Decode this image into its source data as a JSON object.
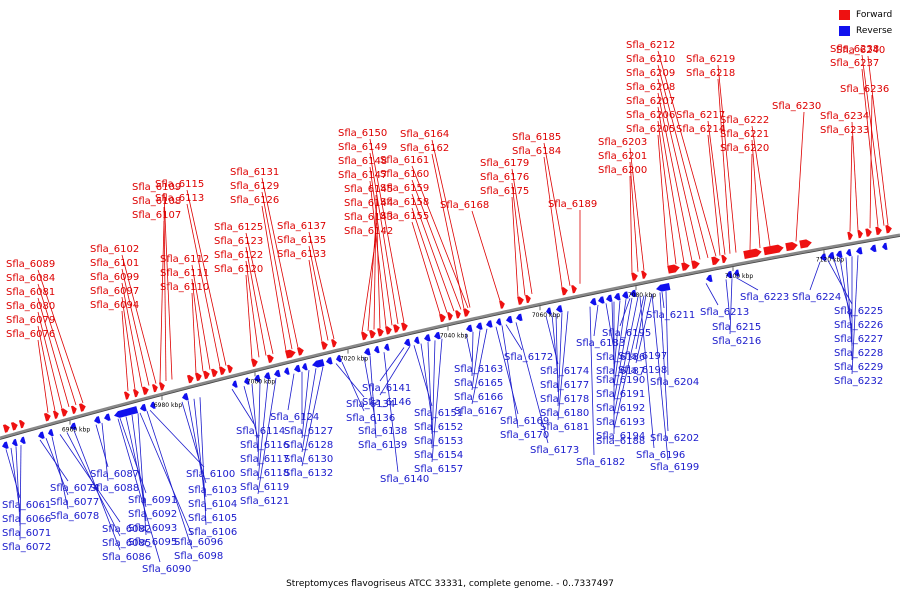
{
  "legend": [
    {
      "label": "Forward",
      "color": "#ee1111"
    },
    {
      "label": "Reverse",
      "color": "#1111ee"
    }
  ],
  "caption": "Streptomyces flavogriseus ATCC 33331, complete genome. - 0..7337497",
  "colors": {
    "forward": "#ee1111",
    "reverse": "#1111ee",
    "backbone": "#888888"
  },
  "ticks": [
    "6960 kbp",
    "6980 kbp",
    "7000 kbp",
    "7020 kbp",
    "7040 kbp",
    "7060 kbp",
    "7080 kbp",
    "7100 kbp",
    "7120 kbp"
  ],
  "forward_labels": [
    "Sfla_6076",
    "Sfla_6079",
    "Sfla_6080",
    "Sfla_6081",
    "Sfla_6084",
    "Sfla_6089",
    "Sfla_6094",
    "Sfla_6097",
    "Sfla_6099",
    "Sfla_6101",
    "Sfla_6102",
    "Sfla_6107",
    "Sfla_6108",
    "Sfla_6109",
    "Sfla_6110",
    "Sfla_6111",
    "Sfla_6112",
    "Sfla_6113",
    "Sfla_6115",
    "Sfla_6120",
    "Sfla_6122",
    "Sfla_6123",
    "Sfla_6125",
    "Sfla_6126",
    "Sfla_6129",
    "Sfla_6131",
    "Sfla_6133",
    "Sfla_6135",
    "Sfla_6137",
    "Sfla_6142",
    "Sfla_6143",
    "Sfla_6144",
    "Sfla_6145",
    "Sfla_6147",
    "Sfla_6148",
    "Sfla_6149",
    "Sfla_6150",
    "Sfla_6155",
    "Sfla_6158",
    "Sfla_6159",
    "Sfla_6160",
    "Sfla_6161",
    "Sfla_6162",
    "Sfla_6164",
    "Sfla_6168",
    "Sfla_6175",
    "Sfla_6176",
    "Sfla_6179",
    "Sfla_6184",
    "Sfla_6185",
    "Sfla_6189",
    "Sfla_6200",
    "Sfla_6201",
    "Sfla_6203",
    "Sfla_6205",
    "Sfla_6206",
    "Sfla_6207",
    "Sfla_6208",
    "Sfla_6209",
    "Sfla_6210",
    "Sfla_6212",
    "Sfla_6214",
    "Sfla_6217",
    "Sfla_6218",
    "Sfla_6219",
    "Sfla_6220",
    "Sfla_6221",
    "Sfla_6222",
    "Sfla_6230",
    "Sfla_6233",
    "Sfla_6234",
    "Sfla_6236",
    "Sfla_6237",
    "Sfla_6238",
    "Sfla_6240"
  ],
  "reverse_labels": [
    "Sfla_6061",
    "Sfla_6066",
    "Sfla_6071",
    "Sfla_6072",
    "Sfla_6074",
    "Sfla_6077",
    "Sfla_6078",
    "Sfla_6082",
    "Sfla_6085",
    "Sfla_6086",
    "Sfla_6087",
    "Sfla_6088",
    "Sfla_6090",
    "Sfla_6091",
    "Sfla_6092",
    "Sfla_6093",
    "Sfla_6095",
    "Sfla_6096",
    "Sfla_6098",
    "Sfla_6100",
    "Sfla_6103",
    "Sfla_6104",
    "Sfla_6105",
    "Sfla_6106",
    "Sfla_6114",
    "Sfla_6116",
    "Sfla_6117",
    "Sfla_6118",
    "Sfla_6119",
    "Sfla_6121",
    "Sfla_6124",
    "Sfla_6127",
    "Sfla_6128",
    "Sfla_6130",
    "Sfla_6132",
    "Sfla_6134",
    "Sfla_6136",
    "Sfla_6138",
    "Sfla_6139",
    "Sfla_6140",
    "Sfla_6141",
    "Sfla_6146",
    "Sfla_6151",
    "Sfla_6152",
    "Sfla_6153",
    "Sfla_6154",
    "Sfla_6157",
    "Sfla_6163",
    "Sfla_6165",
    "Sfla_6166",
    "Sfla_6167",
    "Sfla_6169",
    "Sfla_6170",
    "Sfla_6172",
    "Sfla_6173",
    "Sfla_6174",
    "Sfla_6177",
    "Sfla_6178",
    "Sfla_6180",
    "Sfla_6181",
    "Sfla_6182",
    "Sfla_6183",
    "Sfla_6186",
    "Sfla_6187",
    "Sfla_6188",
    "Sfla_6190",
    "Sfla_6191",
    "Sfla_6192",
    "Sfla_6193",
    "Sfla_6194",
    "Sfla_6195",
    "Sfla_6196",
    "Sfla_6197",
    "Sfla_6198",
    "Sfla_6199",
    "Sfla_6202",
    "Sfla_6204",
    "Sfla_6211",
    "Sfla_6213",
    "Sfla_6215",
    "Sfla_6216",
    "Sfla_6223",
    "Sfla_6224",
    "Sfla_6225",
    "Sfla_6226",
    "Sfla_6227",
    "Sfla_6228",
    "Sfla_6229",
    "Sfla_6232"
  ]
}
